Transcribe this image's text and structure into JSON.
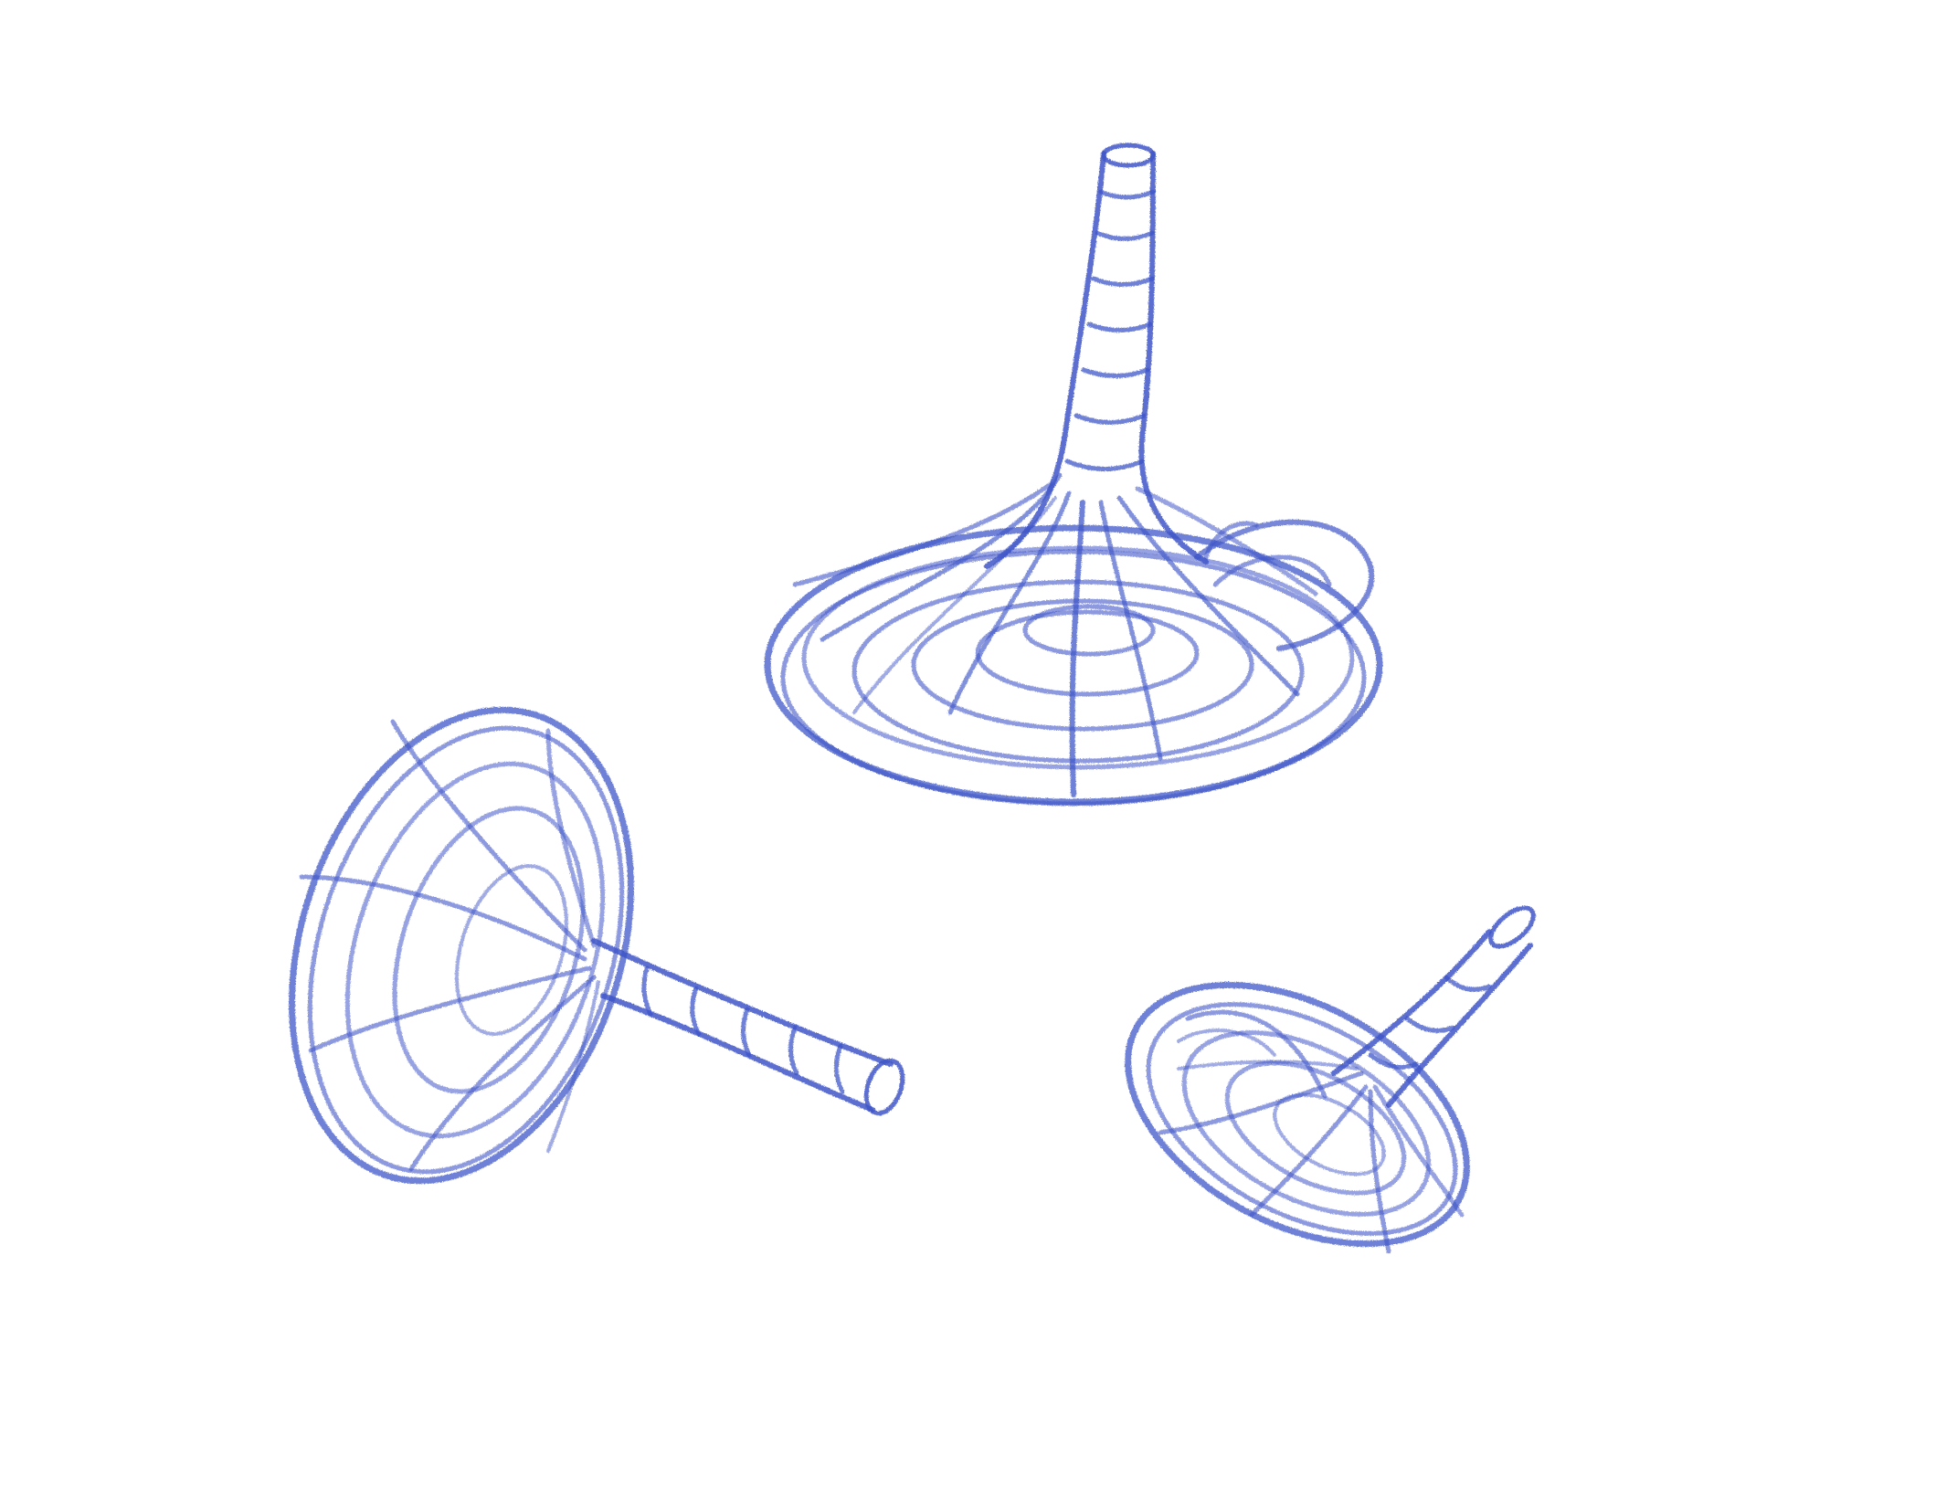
{
  "canvas": {
    "background": "#ffffff"
  },
  "sketch": {
    "stroke_color": "#3f56c8",
    "stroke_color_dark": "#2f45b8",
    "objects": [
      {
        "name": "upright-trumpet-sketch"
      },
      {
        "name": "tilted-left-trumpet-sketch"
      },
      {
        "name": "small-right-trumpet-sketch"
      }
    ]
  }
}
